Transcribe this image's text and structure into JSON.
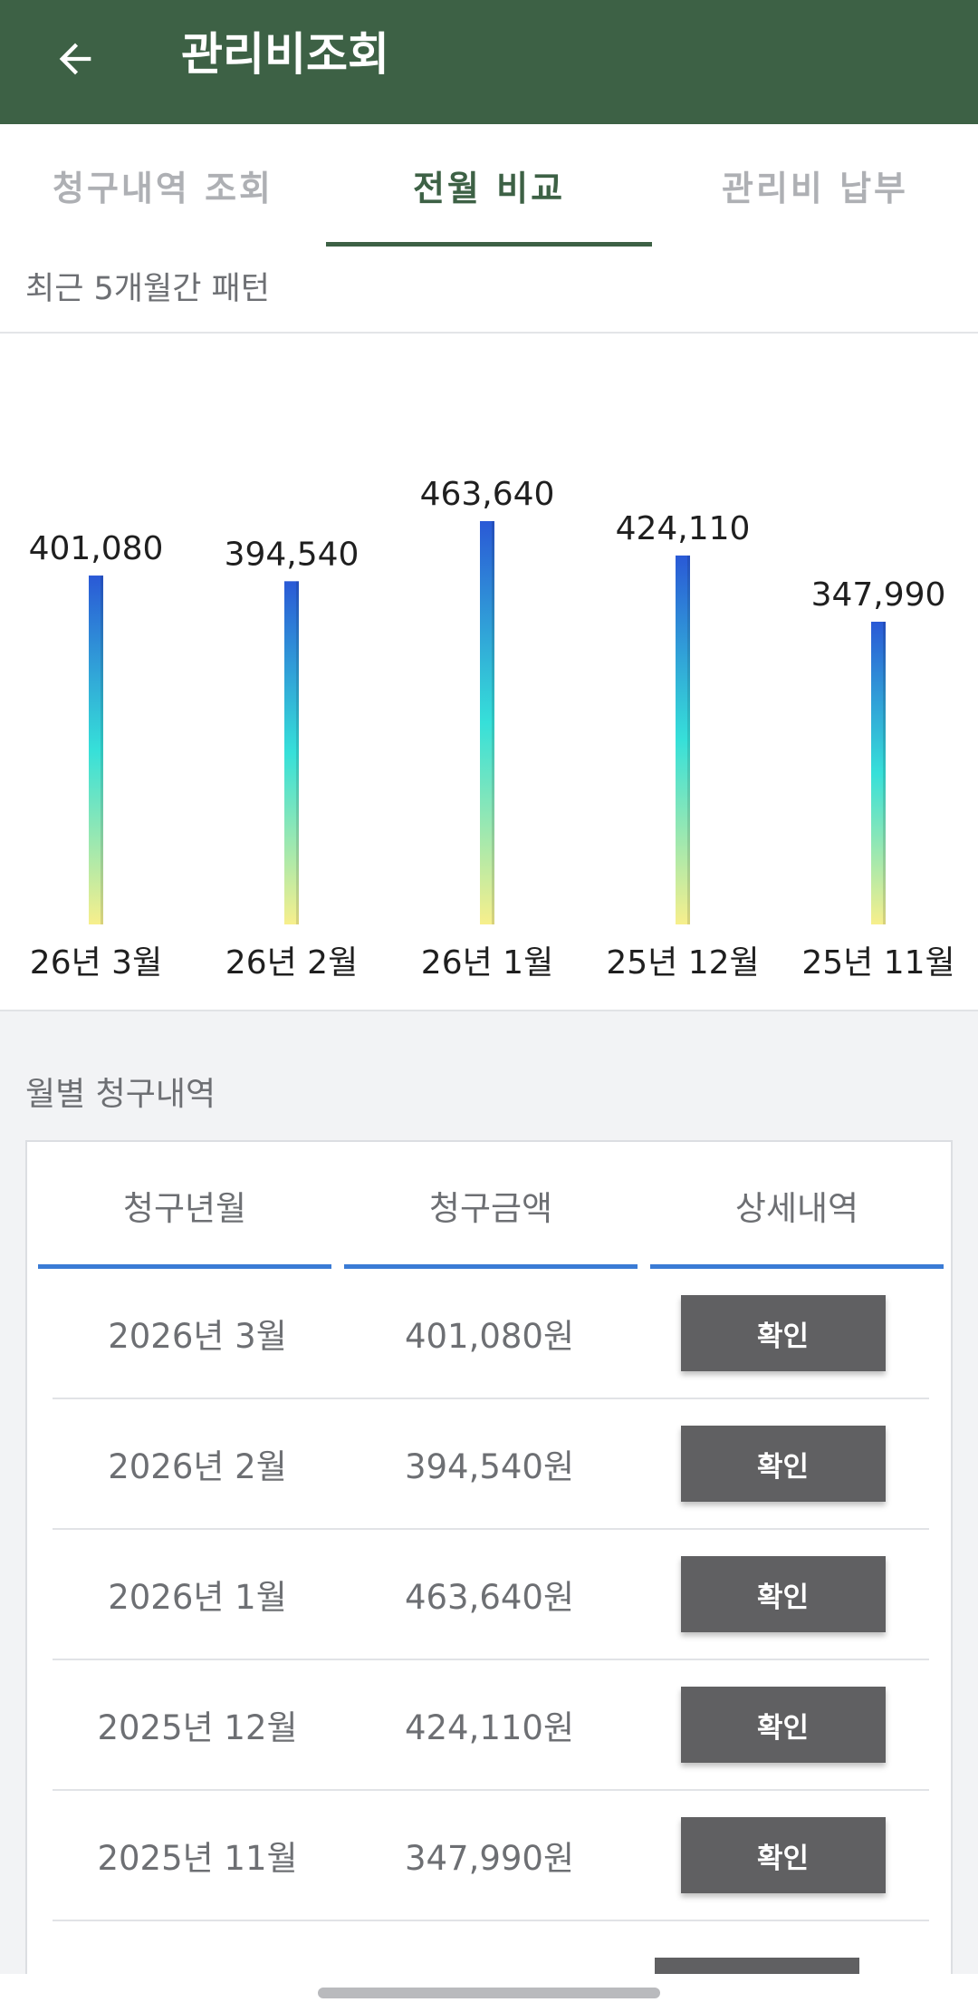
{
  "appbar": {
    "title": "관리비조회",
    "back_icon": "arrow-left-icon"
  },
  "tabs": [
    {
      "label": "청구내역 조회",
      "active": false
    },
    {
      "label": "전월 비교",
      "active": true
    },
    {
      "label": "관리비 납부",
      "active": false
    }
  ],
  "chart_section": {
    "caption": "최근 5개월간 패턴"
  },
  "chart_data": {
    "type": "bar",
    "categories": [
      "26년 3월",
      "26년 2월",
      "26년 1월",
      "25년 12월",
      "25년 11월"
    ],
    "values": [
      401080,
      394540,
      463640,
      424110,
      347990
    ],
    "value_labels": [
      "401,080",
      "394,540",
      "463,640",
      "424,110",
      "347,990"
    ],
    "gradient": [
      "#2a59d6",
      "#36e0d9",
      "#f7ef8c"
    ],
    "grid": false,
    "legend": "none"
  },
  "monthly": {
    "title": "월별 청구내역",
    "headers": [
      "청구년월",
      "청구금액",
      "상세내역"
    ],
    "rows": [
      {
        "month": "2026년 3월",
        "amount": "401,080원",
        "action": "확인"
      },
      {
        "month": "2026년 2월",
        "amount": "394,540원",
        "action": "확인"
      },
      {
        "month": "2026년 1월",
        "amount": "463,640원",
        "action": "확인"
      },
      {
        "month": "2025년 12월",
        "amount": "424,110원",
        "action": "확인"
      },
      {
        "month": "2025년 11월",
        "amount": "347,990원",
        "action": "확인"
      }
    ]
  }
}
